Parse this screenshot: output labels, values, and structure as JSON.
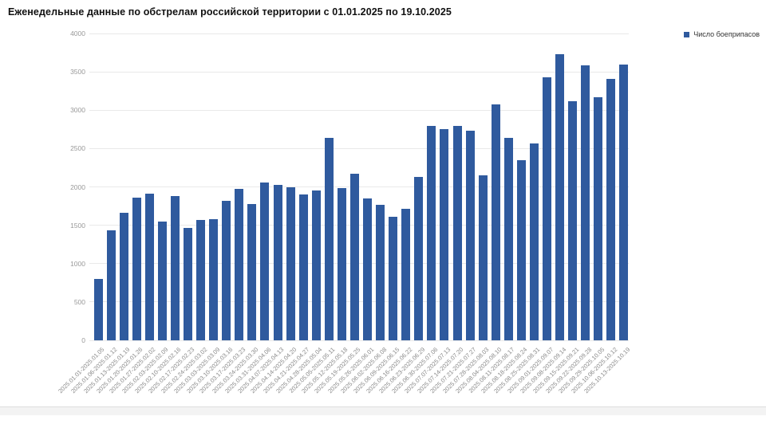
{
  "title": "Еженедельные данные по обстрелам российской территории с 01.01.2025 по 19.10.2025",
  "legend": {
    "label": "Число боеприпасов",
    "color": "#2F5A9E"
  },
  "chart_data": {
    "type": "bar",
    "title": "Еженедельные данные по обстрелам российской территории с 01.01.2025 по 19.10.2025",
    "xlabel": "",
    "ylabel": "",
    "ylim": [
      0,
      4000
    ],
    "ytick_step": 500,
    "grid": true,
    "legend_position": "top-right",
    "bar_color": "#2F5A9E",
    "categories": [
      "2025.01.01-2025.01.05",
      "2025.01.06-2025.01.12",
      "2025.01.13-2025.01.19",
      "2025.01.20-2025.01.26",
      "2025.01.27-2025.02.02",
      "2025.02.03-2025.02.09",
      "2025.02.10-2025.02.16",
      "2025.02.17-2025.02.23",
      "2025.02.24-2025.03.02",
      "2025.03.03-2025.03.09",
      "2025.03.10-2025.03.16",
      "2025.03.17-2025.03.23",
      "2025.03.24-2025.03.30",
      "2025.03.31-2025.04.06",
      "2025.04.07-2025.04.13",
      "2025.04.14-2025.04.20",
      "2025.04.21-2025.04.27",
      "2025.04.28-2025.05.04",
      "2025.05.05-2025.05.11",
      "2025.05.12-2025.05.18",
      "2025.05.19-2025.05.25",
      "2025.05.26-2025.06.01",
      "2025.06.02-2025.06.08",
      "2025.06.09-2025.06.15",
      "2025.06.16-2025.06.22",
      "2025.06.23-2025.06.29",
      "2025.06.30-2025.07.06",
      "2025.07.07-2025.07.13",
      "2025.07.14-2025.07.20",
      "2025.07.21-2025.07.27",
      "2025.07.28-2025.08.03",
      "2025.08.04-2025.08.10",
      "2025.08.11-2025.08.17",
      "2025.08.18-2025.08.24",
      "2025.08.25-2025.08.31",
      "2025.09.01-2025.09.07",
      "2025.09.08-2025.09.14",
      "2025.09.15-2025.09.21",
      "2025.09.22-2025.09.28",
      "2025.09.29-2025.10.05",
      "2025.10.06-2025.10.12",
      "2025.10.13-2025.10.19"
    ],
    "series": [
      {
        "name": "Число боеприпасов",
        "values": [
          800,
          1430,
          1660,
          1860,
          1915,
          1550,
          1885,
          1465,
          1565,
          1575,
          1815,
          1970,
          1775,
          2055,
          2030,
          2000,
          1900,
          1955,
          2640,
          1985,
          2170,
          1850,
          1765,
          1610,
          1710,
          2130,
          2790,
          2755,
          2790,
          2730,
          2150,
          3075,
          2640,
          2350,
          2570,
          3430,
          3725,
          3120,
          3580,
          3165,
          3410,
          3590
        ]
      }
    ]
  }
}
